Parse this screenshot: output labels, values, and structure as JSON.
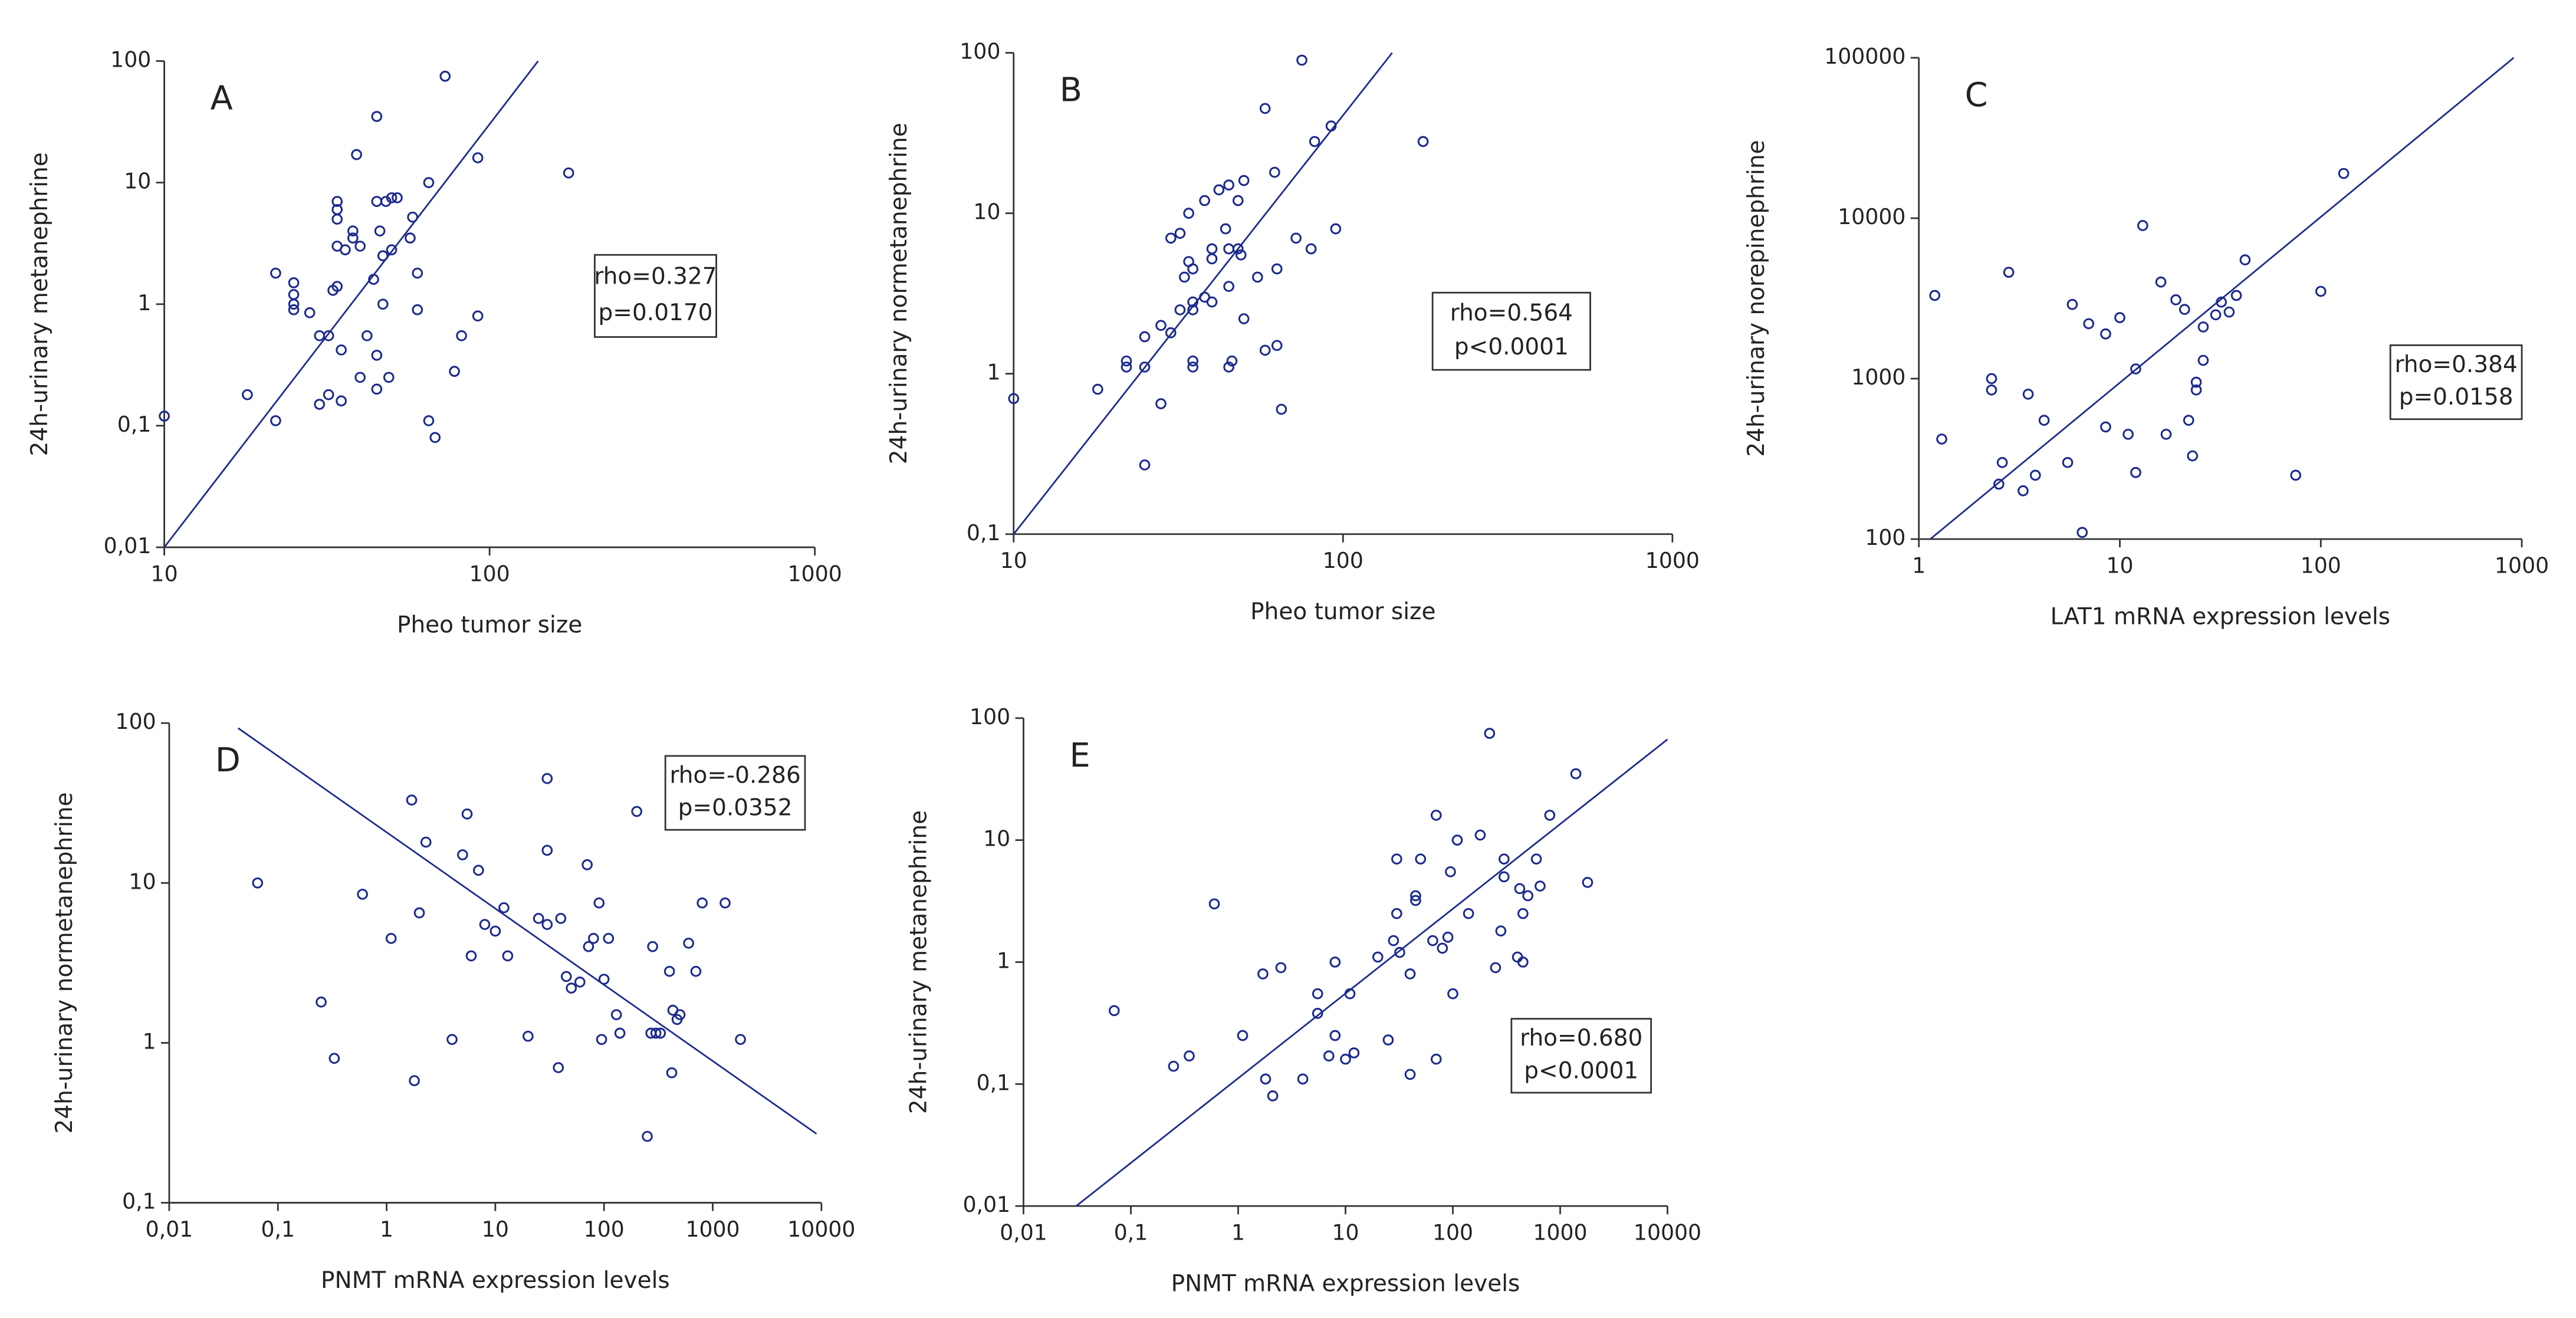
{
  "chart_data": [
    {
      "type": "scatter",
      "title": "A",
      "xlabel": "Pheo tumor size",
      "ylabel": "24h-urinary metanephrine",
      "annotation": [
        "rho=0.327",
        "p=0.0170"
      ],
      "color": "#1c2a8c",
      "xscale": "log",
      "yscale": "log",
      "xlim": [
        10,
        1000
      ],
      "ylim": [
        0.01,
        100
      ],
      "xticks": [
        10,
        100,
        1000
      ],
      "yticks": [
        {
          "value": 0.01,
          "label": "0,01"
        },
        {
          "value": 0.1,
          "label": "0,1"
        },
        1,
        10,
        100
      ],
      "x": [
        10,
        18,
        22,
        22,
        25,
        25,
        25,
        25,
        28,
        30,
        30,
        32,
        32,
        33,
        34,
        34,
        34,
        34,
        34,
        35,
        35,
        36,
        38,
        38,
        39,
        40,
        40,
        42,
        44,
        45,
        45,
        45,
        45,
        46,
        47,
        47,
        48,
        49,
        50,
        50,
        52,
        57,
        58,
        60,
        60,
        65,
        65,
        68,
        73,
        78,
        82,
        92,
        92,
        175
      ],
      "y": [
        0.12,
        0.18,
        0.11,
        1.8,
        1.5,
        1.2,
        1.0,
        0.9,
        0.85,
        0.55,
        0.15,
        0.55,
        0.18,
        1.3,
        1.4,
        7,
        6,
        5,
        3,
        0.42,
        0.16,
        2.8,
        4,
        3.5,
        17,
        0.25,
        3,
        0.55,
        1.6,
        7,
        35,
        0.38,
        0.2,
        4,
        2.5,
        1,
        7,
        0.25,
        2.8,
        7.5,
        7.5,
        3.5,
        5.2,
        1.8,
        0.9,
        10,
        0.11,
        0.08,
        75,
        0.28,
        0.55,
        16,
        0.8,
        12
      ],
      "fit_line": {
        "x": [
          10,
          141
        ],
        "y": [
          0.01,
          100
        ]
      }
    },
    {
      "type": "scatter",
      "title": "B",
      "xlabel": "Pheo tumor size",
      "ylabel": "24h-urinary normetanephrine",
      "annotation": [
        "rho=0.564",
        "p<0.0001"
      ],
      "color": "#1c2a8c",
      "xscale": "log",
      "yscale": "log",
      "xlim": [
        10,
        1000
      ],
      "ylim": [
        0.1,
        100
      ],
      "xticks": [
        10,
        100,
        1000
      ],
      "yticks": [
        {
          "value": 0.1,
          "label": "0,1"
        },
        1,
        10,
        100
      ],
      "x": [
        10,
        18,
        22,
        22,
        25,
        25,
        25,
        28,
        28,
        30,
        30,
        32,
        32,
        33,
        34,
        34,
        35,
        35,
        35,
        35,
        35,
        38,
        38,
        40,
        40,
        40,
        42,
        44,
        45,
        45,
        45,
        45,
        46,
        48,
        48,
        49,
        50,
        50,
        55,
        58,
        58,
        62,
        63,
        63,
        65,
        72,
        75,
        80,
        82,
        92,
        95,
        175
      ],
      "y": [
        0.7,
        0.8,
        1.1,
        1.2,
        1.7,
        1.1,
        0.27,
        0.65,
        2,
        7,
        1.8,
        2.5,
        7.5,
        4,
        10,
        5,
        4.5,
        2.8,
        2.5,
        1.2,
        1.1,
        12,
        3,
        6,
        5.2,
        2.8,
        14,
        8,
        15,
        6,
        3.5,
        1.1,
        1.2,
        12,
        6,
        5.5,
        16,
        2.2,
        4,
        1.4,
        45,
        18,
        4.5,
        1.5,
        0.6,
        7,
        90,
        6,
        28,
        35,
        8,
        28
      ],
      "fit_line": {
        "x": [
          10,
          141
        ],
        "y": [
          0.1,
          100
        ]
      }
    },
    {
      "type": "scatter",
      "title": "C",
      "xlabel": "LAT1 mRNA expression levels",
      "ylabel": "24h-urinary norepinephrine",
      "annotation": [
        "rho=0.384",
        "p=0.0158"
      ],
      "color": "#1c2a8c",
      "xscale": "log",
      "yscale": "log",
      "xlim": [
        1,
        1000
      ],
      "ylim": [
        100,
        100000
      ],
      "xticks": [
        1,
        10,
        100,
        1000
      ],
      "yticks": [
        100,
        1000,
        10000,
        100000
      ],
      "x": [
        1.2,
        1.3,
        2.3,
        2.3,
        2.5,
        2.6,
        2.8,
        3.3,
        3.5,
        3.8,
        4.2,
        5.5,
        5.8,
        6.5,
        7,
        8.5,
        8.5,
        10,
        11,
        12,
        12,
        13,
        16,
        17,
        19,
        21,
        22,
        23,
        24,
        24,
        26,
        26,
        30,
        32,
        35,
        38,
        42,
        75,
        100,
        130
      ],
      "y": [
        3300,
        420,
        1000,
        850,
        220,
        300,
        4600,
        200,
        800,
        250,
        550,
        300,
        2900,
        110,
        2200,
        1900,
        500,
        2400,
        450,
        1150,
        260,
        9000,
        4000,
        450,
        3100,
        2700,
        550,
        330,
        950,
        850,
        2100,
        1300,
        2500,
        3000,
        2600,
        3300,
        5500,
        250,
        3500,
        19000
      ],
      "fit_line": {
        "x": [
          1.14,
          912
        ],
        "y": [
          100,
          100000
        ]
      }
    },
    {
      "type": "scatter",
      "title": "D",
      "xlabel": "PNMT mRNA expression levels",
      "ylabel": "24h-urinary normetanephrine",
      "annotation": [
        "rho=-0.286",
        "p=0.0352"
      ],
      "color": "#1c2a8c",
      "xscale": "log",
      "yscale": "log",
      "xlim": [
        0.01,
        10000
      ],
      "ylim": [
        0.1,
        100
      ],
      "xticks": [
        {
          "value": 0.01,
          "label": "0,01"
        },
        {
          "value": 0.1,
          "label": "0,1"
        },
        1,
        10,
        100,
        1000,
        10000
      ],
      "yticks": [
        {
          "value": 0.1,
          "label": "0,1"
        },
        1,
        10,
        100
      ],
      "x": [
        0.065,
        0.25,
        0.33,
        0.6,
        1.1,
        1.7,
        1.8,
        2,
        2.3,
        4,
        5,
        5.5,
        6,
        7,
        8,
        10,
        12,
        13,
        20,
        25,
        30,
        30,
        30,
        38,
        40,
        45,
        50,
        60,
        70,
        72,
        80,
        90,
        95,
        100,
        110,
        130,
        140,
        200,
        250,
        270,
        280,
        300,
        330,
        400,
        420,
        430,
        470,
        500,
        600,
        700,
        800,
        1300,
        1800
      ],
      "y": [
        10,
        1.8,
        0.8,
        8.5,
        4.5,
        33,
        0.58,
        6.5,
        18,
        1.05,
        15,
        27,
        3.5,
        12,
        5.5,
        5,
        7,
        3.5,
        1.1,
        6,
        5.5,
        45,
        16,
        0.7,
        6,
        2.6,
        2.2,
        2.4,
        13,
        4,
        4.5,
        7.5,
        1.05,
        2.5,
        4.5,
        1.5,
        1.15,
        28,
        0.26,
        1.15,
        4,
        1.15,
        1.15,
        2.8,
        0.65,
        1.6,
        1.4,
        1.5,
        4.2,
        2.8,
        7.5,
        7.5,
        1.05
      ],
      "fit_line": {
        "x": [
          0.043,
          9000
        ],
        "y": [
          93,
          0.27
        ]
      }
    },
    {
      "type": "scatter",
      "title": "E",
      "xlabel": "PNMT mRNA expression levels",
      "ylabel": "24h-urinary metanephrine",
      "annotation": [
        "rho=0.680",
        "p<0.0001"
      ],
      "color": "#1c2a8c",
      "xscale": "log",
      "yscale": "log",
      "xlim": [
        0.01,
        10000
      ],
      "ylim": [
        0.01,
        100
      ],
      "xticks": [
        {
          "value": 0.01,
          "label": "0,01"
        },
        {
          "value": 0.1,
          "label": "0,1"
        },
        1,
        10,
        100,
        1000,
        10000
      ],
      "yticks": [
        {
          "value": 0.01,
          "label": "0,01"
        },
        {
          "value": 0.1,
          "label": "0,1"
        },
        1,
        10,
        100
      ],
      "x": [
        0.07,
        0.25,
        0.35,
        0.6,
        1.1,
        1.7,
        1.8,
        2.1,
        2.5,
        4,
        5.5,
        5.5,
        7,
        8,
        8,
        10,
        11,
        12,
        20,
        25,
        28,
        30,
        30,
        32,
        40,
        40,
        45,
        45,
        50,
        65,
        70,
        70,
        80,
        90,
        95,
        100,
        110,
        140,
        180,
        220,
        250,
        280,
        300,
        300,
        400,
        420,
        450,
        450,
        500,
        600,
        650,
        800,
        1400,
        1800
      ],
      "y": [
        0.4,
        0.14,
        0.17,
        3,
        0.25,
        0.8,
        0.11,
        0.08,
        0.9,
        0.11,
        0.55,
        0.38,
        0.17,
        0.25,
        1,
        0.16,
        0.55,
        0.18,
        1.1,
        0.23,
        1.5,
        2.5,
        7,
        1.2,
        0.8,
        0.12,
        3.5,
        3.2,
        7,
        1.5,
        16,
        0.16,
        1.3,
        1.6,
        5.5,
        0.55,
        10,
        2.5,
        11,
        75,
        0.9,
        1.8,
        5,
        7,
        1.1,
        4,
        1,
        2.5,
        3.5,
        7,
        4.2,
        16,
        35,
        4.5
      ],
      "fit_line": {
        "x": [
          0.031,
          10000
        ],
        "y": [
          0.01,
          67
        ]
      }
    }
  ]
}
